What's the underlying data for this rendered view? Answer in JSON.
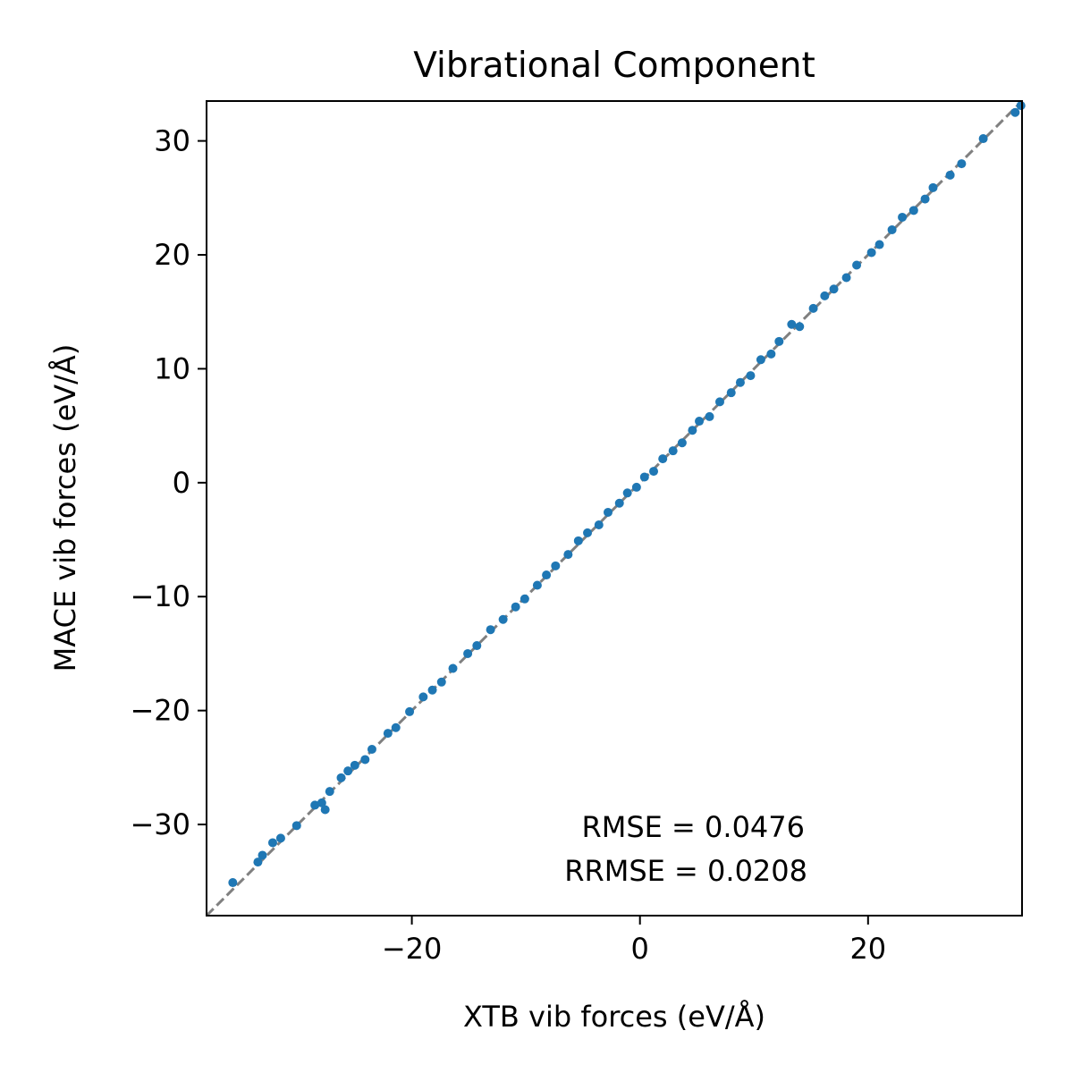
{
  "chart_data": {
    "type": "scatter",
    "title": "Vibrational Component",
    "xlabel": "XTB vib forces (eV/Å)",
    "ylabel": "MACE vib forces (eV/Å)",
    "xlim": [
      -38,
      33.5
    ],
    "ylim": [
      -38,
      33.5
    ],
    "xticks": [
      -20,
      0,
      20
    ],
    "xtick_labels": [
      "−20",
      "0",
      "20"
    ],
    "yticks": [
      -30,
      -20,
      -10,
      0,
      10,
      20,
      30
    ],
    "ytick_labels": [
      "−30",
      "−20",
      "−10",
      "0",
      "10",
      "20",
      "30"
    ],
    "reference_line": "y = x (dashed, gray)",
    "grid": false,
    "marker_color": "#1f77b4",
    "reference_color": "#808080",
    "annotations": [
      "RMSE = 0.0476",
      "RRMSE = 0.0208"
    ],
    "series": [
      {
        "points": [
          [
            -35.7,
            -35.1
          ],
          [
            -33.5,
            -33.3
          ],
          [
            -33.1,
            -32.7
          ],
          [
            -32.2,
            -31.6
          ],
          [
            -31.5,
            -31.2
          ],
          [
            -30.1,
            -30.1
          ],
          [
            -28.5,
            -28.3
          ],
          [
            -27.9,
            -28.1
          ],
          [
            -27.6,
            -28.7
          ],
          [
            -27.2,
            -27.1
          ],
          [
            -26.2,
            -25.9
          ],
          [
            -25.6,
            -25.3
          ],
          [
            -25.0,
            -24.8
          ],
          [
            -24.1,
            -24.3
          ],
          [
            -23.5,
            -23.4
          ],
          [
            -22.1,
            -22.0
          ],
          [
            -21.4,
            -21.5
          ],
          [
            -20.2,
            -20.1
          ],
          [
            -19.0,
            -18.8
          ],
          [
            -18.2,
            -18.2
          ],
          [
            -17.4,
            -17.5
          ],
          [
            -16.4,
            -16.3
          ],
          [
            -15.1,
            -15.0
          ],
          [
            -14.3,
            -14.3
          ],
          [
            -13.1,
            -12.9
          ],
          [
            -12.0,
            -12.0
          ],
          [
            -10.9,
            -10.9
          ],
          [
            -10.1,
            -10.2
          ],
          [
            -9.0,
            -9.0
          ],
          [
            -8.2,
            -8.1
          ],
          [
            -7.4,
            -7.3
          ],
          [
            -6.3,
            -6.3
          ],
          [
            -5.4,
            -5.1
          ],
          [
            -4.6,
            -4.4
          ],
          [
            -3.6,
            -3.7
          ],
          [
            -2.8,
            -2.6
          ],
          [
            -1.8,
            -1.8
          ],
          [
            -1.1,
            -0.9
          ],
          [
            -0.3,
            -0.4
          ],
          [
            0.4,
            0.5
          ],
          [
            1.2,
            1.0
          ],
          [
            2.0,
            2.1
          ],
          [
            2.9,
            2.8
          ],
          [
            3.7,
            3.5
          ],
          [
            4.6,
            4.6
          ],
          [
            5.2,
            5.4
          ],
          [
            6.1,
            5.8
          ],
          [
            7.0,
            7.1
          ],
          [
            8.0,
            7.9
          ],
          [
            8.8,
            8.8
          ],
          [
            9.7,
            9.4
          ],
          [
            10.6,
            10.8
          ],
          [
            11.5,
            11.3
          ],
          [
            12.2,
            12.4
          ],
          [
            13.3,
            13.9
          ],
          [
            14.0,
            13.7
          ],
          [
            15.2,
            15.3
          ],
          [
            16.2,
            16.4
          ],
          [
            17.0,
            17.0
          ],
          [
            18.1,
            18.0
          ],
          [
            19.0,
            19.1
          ],
          [
            20.3,
            20.2
          ],
          [
            21.0,
            20.9
          ],
          [
            22.1,
            22.2
          ],
          [
            23.0,
            23.3
          ],
          [
            24.0,
            23.9
          ],
          [
            25.0,
            24.9
          ],
          [
            25.7,
            25.9
          ],
          [
            27.2,
            27.0
          ],
          [
            28.2,
            28.0
          ],
          [
            30.1,
            30.2
          ],
          [
            32.9,
            32.5
          ],
          [
            33.4,
            33.1
          ]
        ]
      }
    ]
  }
}
